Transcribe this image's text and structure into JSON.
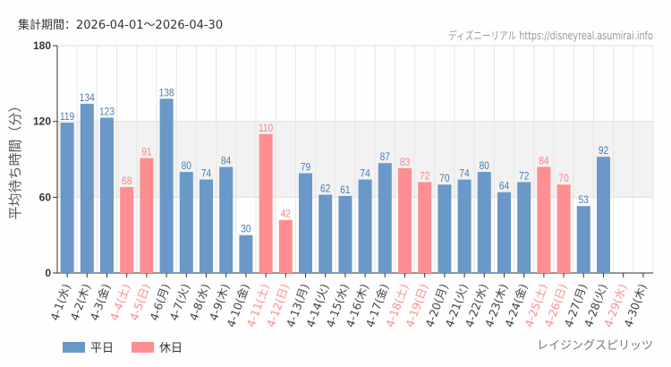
{
  "header": {
    "period": "集計期間：2026-04-01～2026-04-30",
    "credit": "ディズニーリアル https://disneyreal.asumirai.info"
  },
  "footer": {
    "attraction": "レイジングスピリッツ"
  },
  "colors": {
    "weekday": "#6a98c8",
    "holiday": "#fe8e91",
    "holiday_text": "#fe8e91"
  },
  "chart_data": {
    "type": "bar",
    "title": "",
    "xlabel": "",
    "ylabel": "平均待ち時間（分）",
    "ylim": [
      0,
      180
    ],
    "yticks": [
      0,
      60,
      120,
      180
    ],
    "shaded_band": [
      60,
      120
    ],
    "grid": true,
    "legend": [
      {
        "name": "平日",
        "key": "weekday"
      },
      {
        "name": "休日",
        "key": "holiday"
      }
    ],
    "legend_position": "bottom-left",
    "categories": [
      "4-1(水)",
      "4-2(木)",
      "4-3(金)",
      "4-4(土)",
      "4-5(日)",
      "4-6(月)",
      "4-7(火)",
      "4-8(水)",
      "4-9(木)",
      "4-10(金)",
      "4-11(土)",
      "4-12(日)",
      "4-13(月)",
      "4-14(火)",
      "4-15(水)",
      "4-16(木)",
      "4-17(金)",
      "4-18(土)",
      "4-19(日)",
      "4-20(月)",
      "4-21(火)",
      "4-22(水)",
      "4-23(木)",
      "4-24(金)",
      "4-25(土)",
      "4-26(日)",
      "4-27(月)",
      "4-28(火)",
      "4-29(水)",
      "4-30(木)"
    ],
    "holiday": [
      false,
      false,
      false,
      true,
      true,
      false,
      false,
      false,
      false,
      false,
      true,
      true,
      false,
      false,
      false,
      false,
      false,
      true,
      true,
      false,
      false,
      false,
      false,
      false,
      true,
      true,
      false,
      false,
      true,
      false
    ],
    "values": [
      119,
      134,
      123,
      68,
      91,
      138,
      80,
      74,
      84,
      30,
      110,
      42,
      79,
      62,
      61,
      74,
      87,
      83,
      72,
      70,
      74,
      80,
      64,
      72,
      84,
      70,
      53,
      92,
      null,
      null
    ]
  }
}
